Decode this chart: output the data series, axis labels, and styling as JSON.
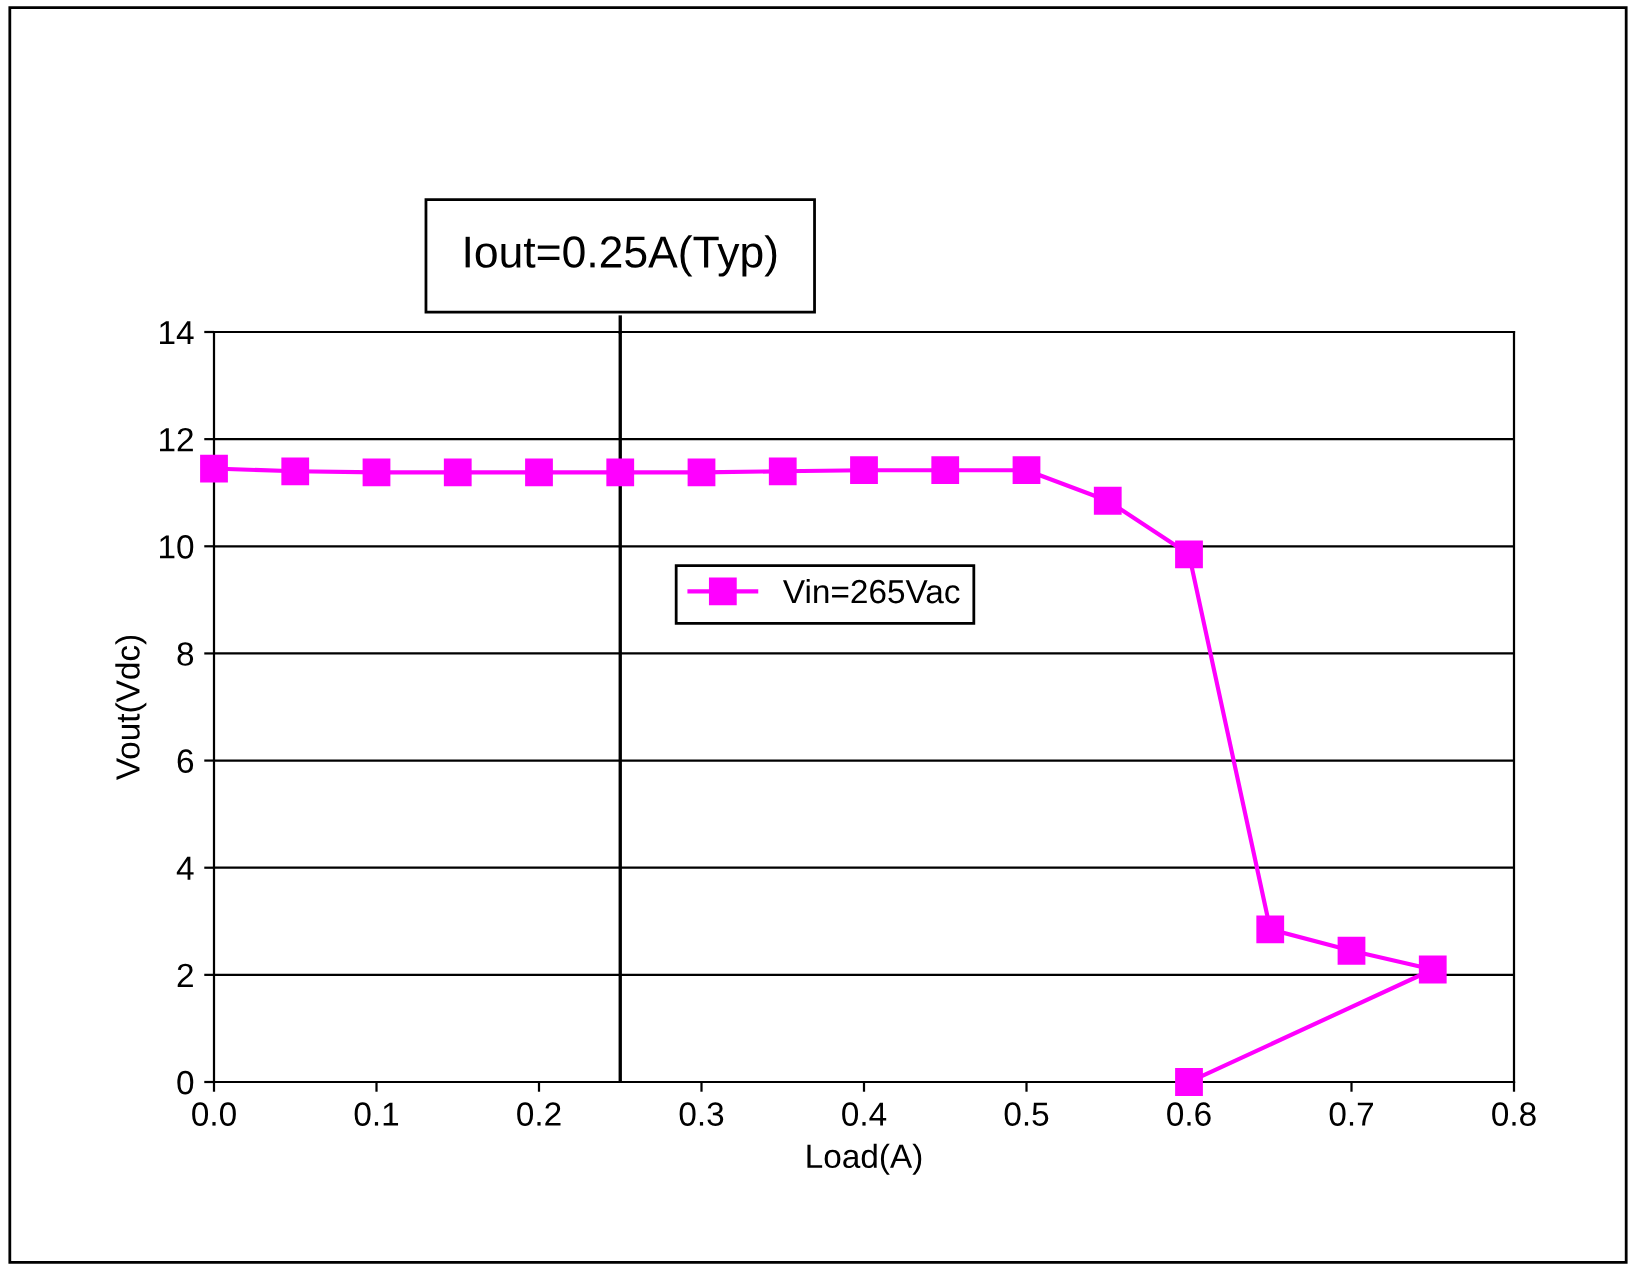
{
  "chart_data": {
    "type": "line",
    "xlabel": "Load(A)",
    "ylabel": "Vout(Vdc)",
    "series": [
      {
        "name": "Vin=265Vac",
        "color": "#ff00ff",
        "x": [
          0.0,
          0.05,
          0.1,
          0.15,
          0.2,
          0.25,
          0.3,
          0.35,
          0.4,
          0.45,
          0.5,
          0.55,
          0.6,
          0.65,
          0.7,
          0.75,
          0.6
        ],
        "values": [
          11.45,
          11.4,
          11.38,
          11.38,
          11.38,
          11.38,
          11.38,
          11.4,
          11.42,
          11.42,
          11.42,
          10.85,
          9.85,
          2.85,
          2.45,
          2.1,
          0
        ]
      }
    ],
    "xlim": [
      0,
      0.8
    ],
    "xticks": [
      {
        "value": 0,
        "label": "0.0"
      },
      0.1,
      0.2,
      0.3,
      0.4,
      0.5,
      0.6,
      0.7,
      0.8
    ],
    "ylim": [
      0,
      14
    ],
    "yticks": [
      0,
      2,
      4,
      6,
      8,
      10,
      12,
      14
    ],
    "ref_lines": [
      {
        "axis": "x",
        "value": 0.25,
        "label": "Iout=0.25A(Typ)",
        "color": "#000000"
      }
    ],
    "grid": "y",
    "legend": "center",
    "marker": "square",
    "line_style": "solid"
  }
}
